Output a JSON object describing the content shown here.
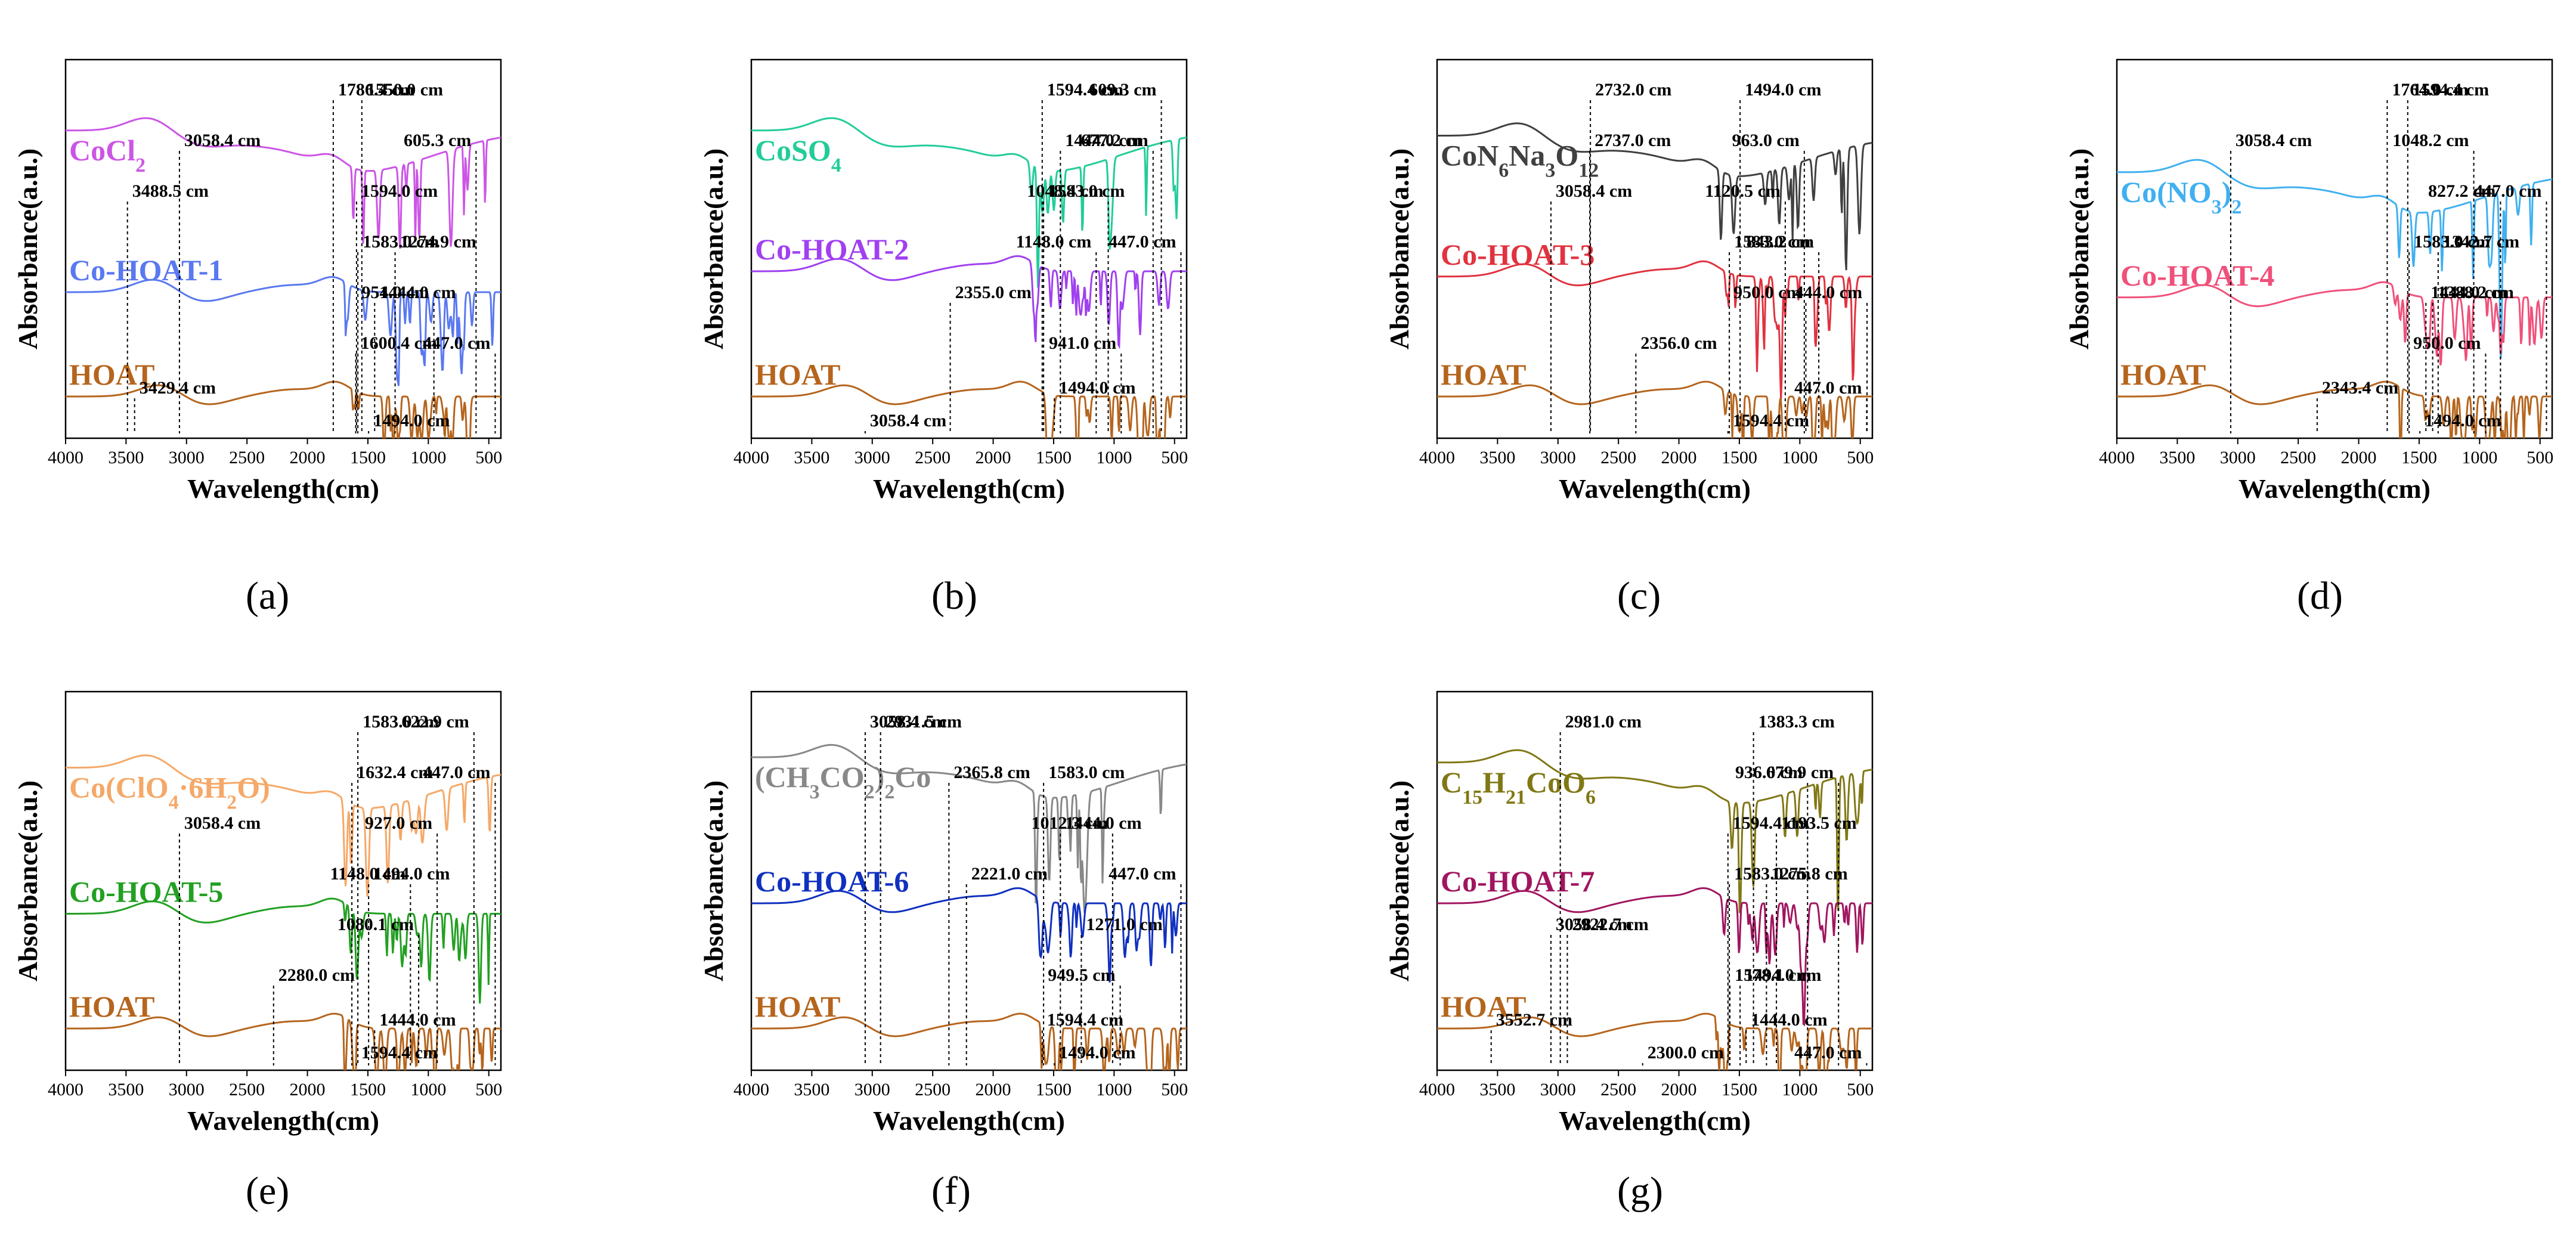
{
  "figure": {
    "captions": [
      "(a)",
      "(b)",
      "(c)",
      "(d)",
      "(e)",
      "(f)",
      "(g)"
    ]
  },
  "colors": {
    "HOAT": "#b5651d",
    "CoCl2": "#cc55e6",
    "Co-HOAT-1": "#5a78f0",
    "CoSO4": "#22cc99",
    "Co-HOAT-2": "#a040f0",
    "CoN6Na3O12": "#404040",
    "Co-HOAT-3": "#e0333f",
    "CoNO32": "#40b0f0",
    "Co-HOAT-4": "#f0507a",
    "CoClO4": "#f5a868",
    "Co-HOAT-5": "#22a022",
    "CoAc": "#888888",
    "Co-HOAT-6": "#1030c0",
    "CoHHO": "#807814",
    "Co-HOAT-7": "#a0155f"
  },
  "chart_data": [
    {
      "type": "line",
      "panel": "(a)",
      "xlabel": "Wavelength(cm)",
      "ylabel": "Absorbance(a.u.)",
      "xlim": [
        4000,
        400
      ],
      "x_ticks": [
        "4000",
        "3500",
        "3000",
        "2500",
        "2000",
        "1500",
        "1000",
        "500"
      ],
      "series": [
        {
          "name": "CoCl2",
          "label_parts": [
            [
              "CoCl",
              ""
            ],
            [
              "2",
              "sub"
            ]
          ],
          "color_key": "CoCl2",
          "offset": 2.15
        },
        {
          "name": "Co-HOAT-1",
          "label_parts": [
            [
              "Co-HOAT-1",
              ""
            ]
          ],
          "color_key": "Co-HOAT-1",
          "offset": 1.0
        },
        {
          "name": "HOAT",
          "label_parts": [
            [
              "HOAT",
              ""
            ]
          ],
          "color_key": "HOAT",
          "offset": 0.0
        }
      ],
      "annotations": [
        {
          "text": "1786.4 cm",
          "x": 1786.4
        },
        {
          "text": "605.3 cm",
          "x": 605.3
        },
        {
          "text": "3488.5 cm",
          "x": 3488.5
        },
        {
          "text": "1274.9 cm",
          "x": 1274.9
        },
        {
          "text": "954.0 cm",
          "x": 954.0
        },
        {
          "text": "1600.4 cm",
          "x": 1600.4
        },
        {
          "text": "3429.4 cm",
          "x": 3429.4
        },
        {
          "text": "1494.0 cm",
          "x": 1494.0
        },
        {
          "text": "1550.0 cm",
          "x": 1550.0
        },
        {
          "text": "3058.4 cm",
          "x": 3058.4
        },
        {
          "text": "1594.0 cm",
          "x": 1594.0
        },
        {
          "text": "1583.0 cm",
          "x": 1583.0
        },
        {
          "text": "1444.0 cm",
          "x": 1444.0
        },
        {
          "text": "447.0 cm",
          "x": 447.0
        }
      ]
    },
    {
      "type": "line",
      "panel": "(b)",
      "xlabel": "Wavelength(cm)",
      "ylabel": "Absorbance(a.u.)",
      "xlim": [
        4000,
        400
      ],
      "x_ticks": [
        "4000",
        "3500",
        "3000",
        "2500",
        "2000",
        "1500",
        "1000",
        "500"
      ],
      "series": [
        {
          "name": "CoSO4",
          "label_parts": [
            [
              "CoSO",
              ""
            ],
            [
              "4",
              "sub"
            ]
          ],
          "color_key": "CoSO4",
          "offset": 2.15
        },
        {
          "name": "Co-HOAT-2",
          "label_parts": [
            [
              "Co-HOAT-2",
              ""
            ]
          ],
          "color_key": "Co-HOAT-2",
          "offset": 1.2
        },
        {
          "name": "HOAT",
          "label_parts": [
            [
              "HOAT",
              ""
            ]
          ],
          "color_key": "HOAT",
          "offset": 0.0
        }
      ],
      "annotations": [
        {
          "text": "609.3 cm",
          "x": 609.3
        },
        {
          "text": "677.2 cm",
          "x": 677.2
        },
        {
          "text": "1048.4 cm",
          "x": 1048.4
        },
        {
          "text": "1148.0 cm",
          "x": 1148.0
        },
        {
          "text": "2355.0 cm",
          "x": 2355.0
        },
        {
          "text": "941.0 cm",
          "x": 941.0
        },
        {
          "text": "1494.0 cm",
          "x": 1494.0
        },
        {
          "text": "3058.4 cm",
          "x": 3058.4
        },
        {
          "text": "1594.4 cm",
          "x": 1594.4
        },
        {
          "text": "1444.0 cm",
          "x": 1444.0
        },
        {
          "text": "1583.0 cm",
          "x": 1583.0
        },
        {
          "text": "447.0 cm",
          "x": 447.0
        }
      ]
    },
    {
      "type": "line",
      "panel": "(c)",
      "xlabel": "Wavelength(cm)",
      "ylabel": "Absorbance(a.u.)",
      "xlim": [
        4000,
        400
      ],
      "x_ticks": [
        "4000",
        "3500",
        "3000",
        "2500",
        "2000",
        "1500",
        "1000",
        "500"
      ],
      "series": [
        {
          "name": "CoN6Na3O12",
          "label_parts": [
            [
              "CoN",
              ""
            ],
            [
              "6",
              "sub"
            ],
            [
              "Na",
              ""
            ],
            [
              "3",
              "sub"
            ],
            [
              "O",
              ""
            ],
            [
              "12",
              "sub"
            ]
          ],
          "color_key": "CoN6Na3O12",
          "offset": 2.1
        },
        {
          "name": "Co-HOAT-3",
          "label_parts": [
            [
              "Co-HOAT-3",
              ""
            ]
          ],
          "color_key": "Co-HOAT-3",
          "offset": 1.15
        },
        {
          "name": "HOAT",
          "label_parts": [
            [
              "HOAT",
              ""
            ]
          ],
          "color_key": "HOAT",
          "offset": 0.0
        }
      ],
      "annotations": [
        {
          "text": "2732.0 cm",
          "x": 2732.0
        },
        {
          "text": "2737.0 cm",
          "x": 2737.0
        },
        {
          "text": "1120.5 cm",
          "x": 1120.5
        },
        {
          "text": "843.2 cm",
          "x": 843.2
        },
        {
          "text": "950.0 cm",
          "x": 950.0
        },
        {
          "text": "2356.0 cm",
          "x": 2356.0
        },
        {
          "text": "447.0 cm",
          "x": 447.0
        },
        {
          "text": "1594.4 cm",
          "x": 1594.4
        },
        {
          "text": "1494.0 cm",
          "x": 1494.0
        },
        {
          "text": "963.0 cm",
          "x": 963.0
        },
        {
          "text": "3058.4 cm",
          "x": 3058.4
        },
        {
          "text": "1583.0 cm",
          "x": 1583.0
        },
        {
          "text": "444.0 cm",
          "x": 444.0
        }
      ]
    },
    {
      "type": "line",
      "panel": "(d)",
      "xlabel": "Wavelength(cm)",
      "ylabel": "Absorbance(a.u.)",
      "xlim": [
        4000,
        400
      ],
      "x_ticks": [
        "4000",
        "3500",
        "3000",
        "2500",
        "2000",
        "1500",
        "1000",
        "500"
      ],
      "series": [
        {
          "name": "Co(NO3)2",
          "label_parts": [
            [
              "Co(NO",
              ""
            ],
            [
              "3",
              "sub"
            ],
            [
              ")",
              ""
            ],
            [
              "2",
              "sub"
            ]
          ],
          "color_key": "CoNO32",
          "offset": 1.75
        },
        {
          "name": "Co-HOAT-4",
          "label_parts": [
            [
              "Co-HOAT-4",
              ""
            ]
          ],
          "color_key": "Co-HOAT-4",
          "offset": 0.95
        },
        {
          "name": "HOAT",
          "label_parts": [
            [
              "HOAT",
              ""
            ]
          ],
          "color_key": "HOAT",
          "offset": 0.0
        }
      ],
      "annotations": [
        {
          "text": "1764.0 cm",
          "x": 1764.0
        },
        {
          "text": "1048.2 cm",
          "x": 1048.2
        },
        {
          "text": "827.2 cm",
          "x": 827.2
        },
        {
          "text": "1342.7 cm",
          "x": 1342.7
        },
        {
          "text": "1388.2 cm",
          "x": 1388.2
        },
        {
          "text": "950.0 cm",
          "x": 950.0
        },
        {
          "text": "2343.4 cm",
          "x": 2343.4
        },
        {
          "text": "1494.0 cm",
          "x": 1494.0
        },
        {
          "text": "1594.4 cm",
          "x": 1594.4
        },
        {
          "text": "3058.4 cm",
          "x": 3058.4
        },
        {
          "text": "447.0 cm",
          "x": 447.0
        },
        {
          "text": "1583.0 cm",
          "x": 1583.0
        },
        {
          "text": "1444.0 cm",
          "x": 1444.0
        }
      ]
    },
    {
      "type": "line",
      "panel": "(e)",
      "xlabel": "Wavelength(cm)",
      "ylabel": "Absorbance(a.u.)",
      "xlim": [
        4000,
        400
      ],
      "x_ticks": [
        "4000",
        "3500",
        "3000",
        "2500",
        "2000",
        "1500",
        "1000",
        "500"
      ],
      "series": [
        {
          "name": "Co(ClO4·6H2O)",
          "label_parts": [
            [
              "Co(ClO",
              ""
            ],
            [
              "4",
              "sub"
            ],
            [
              "·6H",
              ""
            ],
            [
              "2",
              "sub"
            ],
            [
              "O)",
              ""
            ]
          ],
          "color_key": "CoClO4",
          "offset": 2.1
        },
        {
          "name": "Co-HOAT-5",
          "label_parts": [
            [
              "Co-HOAT-5",
              ""
            ]
          ],
          "color_key": "Co-HOAT-5",
          "offset": 1.1
        },
        {
          "name": "HOAT",
          "label_parts": [
            [
              "HOAT",
              ""
            ]
          ],
          "color_key": "HOAT",
          "offset": 0.0
        }
      ],
      "annotations": [
        {
          "text": "622.9 cm",
          "x": 622.9
        },
        {
          "text": "1632.4 cm",
          "x": 1632.4
        },
        {
          "text": "927.0 cm",
          "x": 927.0
        },
        {
          "text": "1148.0 cm",
          "x": 1148.0
        },
        {
          "text": "1080.1 cm",
          "x": 1080.1
        },
        {
          "text": "2280.0 cm",
          "x": 2280.0
        },
        {
          "text": "1444.0 cm",
          "x": 1444.0
        },
        {
          "text": "1594.4 cm",
          "x": 1594.4
        },
        {
          "text": "1583.0 cm",
          "x": 1583.0
        },
        {
          "text": "447.0 cm",
          "x": 447.0
        },
        {
          "text": "3058.4 cm",
          "x": 3058.4
        },
        {
          "text": "1494.0 cm",
          "x": 1494.0
        }
      ]
    },
    {
      "type": "line",
      "panel": "(f)",
      "xlabel": "Wavelength(cm)",
      "ylabel": "Absorbance(a.u.)",
      "xlim": [
        4000,
        400
      ],
      "x_ticks": [
        "4000",
        "3500",
        "3000",
        "2500",
        "2000",
        "1500",
        "1000",
        "500"
      ],
      "series": [
        {
          "name": "(CH3CO2)2Co",
          "label_parts": [
            [
              "(CH",
              ""
            ],
            [
              "3",
              "sub"
            ],
            [
              "CO",
              ""
            ],
            [
              "2",
              "sub"
            ],
            [
              ")",
              ""
            ],
            [
              "2",
              "sub"
            ],
            [
              "Co",
              ""
            ]
          ],
          "color_key": "CoAc",
          "offset": 2.2
        },
        {
          "name": "Co-HOAT-6",
          "label_parts": [
            [
              "Co-HOAT-6",
              ""
            ]
          ],
          "color_key": "Co-HOAT-6",
          "offset": 1.2
        },
        {
          "name": "HOAT",
          "label_parts": [
            [
              "HOAT",
              ""
            ]
          ],
          "color_key": "HOAT",
          "offset": 0.0
        }
      ],
      "annotations": [
        {
          "text": "2931.5 cm",
          "x": 2931.5
        },
        {
          "text": "2365.8 cm",
          "x": 2365.8
        },
        {
          "text": "1012.3 cm",
          "x": 1012.3
        },
        {
          "text": "2221.0 cm",
          "x": 2221.0
        },
        {
          "text": "1271.0 cm",
          "x": 1271.0
        },
        {
          "text": "949.5 cm",
          "x": 949.5
        },
        {
          "text": "1594.4 cm",
          "x": 1594.4
        },
        {
          "text": "1494.0 cm",
          "x": 1494.0
        },
        {
          "text": "3058.4 cm",
          "x": 3058.4
        },
        {
          "text": "1583.0 cm",
          "x": 1583.0
        },
        {
          "text": "1444.0 cm",
          "x": 1444.0
        },
        {
          "text": "447.0 cm",
          "x": 447.0
        }
      ]
    },
    {
      "type": "line",
      "panel": "(g)",
      "xlabel": "Wavelength(cm)",
      "ylabel": "Absorbance(a.u.)",
      "xlim": [
        4000,
        400
      ],
      "x_ticks": [
        "4000",
        "3500",
        "3000",
        "2500",
        "2000",
        "1500",
        "1000",
        "500"
      ],
      "series": [
        {
          "name": "C15H21CoO6",
          "label_parts": [
            [
              "C",
              ""
            ],
            [
              "15",
              "sub"
            ],
            [
              "H",
              ""
            ],
            [
              "21",
              "sub"
            ],
            [
              "CoO",
              ""
            ],
            [
              "6",
              "sub"
            ]
          ],
          "color_key": "CoHHO",
          "offset": 2.15
        },
        {
          "name": "Co-HOAT-7",
          "label_parts": [
            [
              "Co-HOAT-7",
              ""
            ]
          ],
          "color_key": "Co-HOAT-7",
          "offset": 1.2
        },
        {
          "name": "HOAT",
          "label_parts": [
            [
              "HOAT",
              ""
            ]
          ],
          "color_key": "HOAT",
          "offset": 0.0
        }
      ],
      "annotations": [
        {
          "text": "2981.0 cm",
          "x": 2981.0
        },
        {
          "text": "679.9 cm",
          "x": 679.9
        },
        {
          "text": "1193.5 cm",
          "x": 1193.5
        },
        {
          "text": "1275.8 cm",
          "x": 1275.8
        },
        {
          "text": "2922.7 cm",
          "x": 2922.7
        },
        {
          "text": "1578.1 cm",
          "x": 1578.1
        },
        {
          "text": "3552.7 cm",
          "x": 3552.7
        },
        {
          "text": "2300.0 cm",
          "x": 2300.0
        },
        {
          "text": "1383.3 cm",
          "x": 1383.3
        },
        {
          "text": "936.0 cm",
          "x": 936.0
        },
        {
          "text": "1594.4 cm",
          "x": 1594.4
        },
        {
          "text": "1583.0 cm",
          "x": 1583.0
        },
        {
          "text": "3058.4 cm",
          "x": 3058.4
        },
        {
          "text": "1494.0 cm",
          "x": 1494.0
        },
        {
          "text": "1444.0 cm",
          "x": 1444.0
        },
        {
          "text": "447.0 cm",
          "x": 447.0
        }
      ]
    }
  ]
}
